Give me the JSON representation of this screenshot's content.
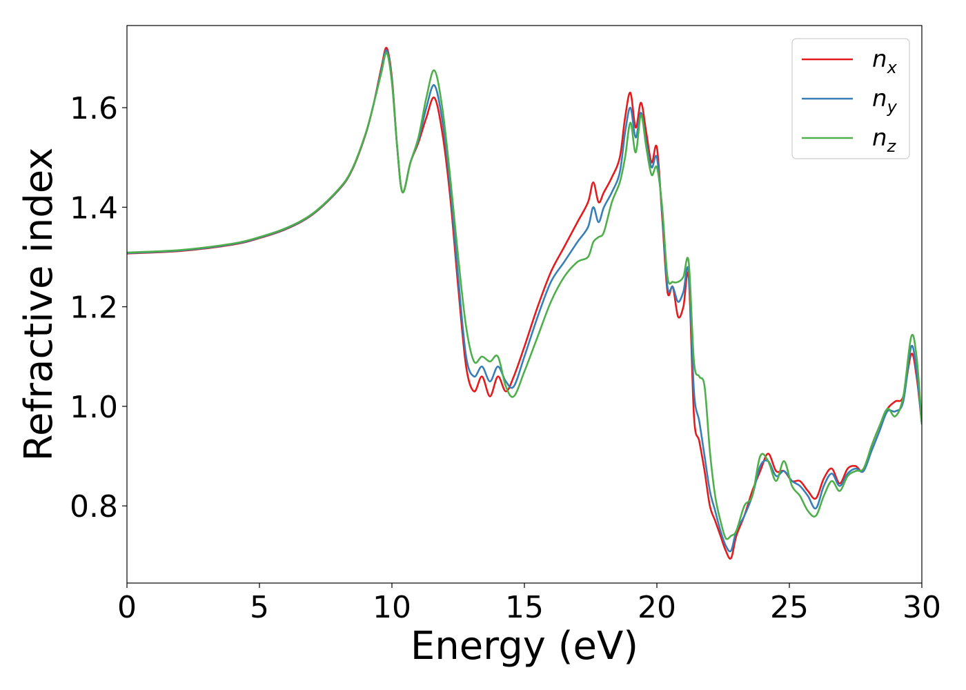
{
  "chart_data": {
    "type": "line",
    "title": "",
    "xlabel": "Energy (eV)",
    "ylabel": "Refractive index",
    "xlim": [
      0,
      30
    ],
    "ylim": [
      0.645,
      1.765
    ],
    "xticks": [
      0,
      5,
      10,
      15,
      20,
      25,
      30
    ],
    "xtick_labels": [
      "0",
      "5",
      "10",
      "15",
      "20",
      "25",
      "30"
    ],
    "yticks": [
      0.8,
      1.0,
      1.2,
      1.4,
      1.6
    ],
    "ytick_labels": [
      "0.8",
      "1.0",
      "1.2",
      "1.4",
      "1.6"
    ],
    "grid": false,
    "legend_position": "top-right",
    "series": [
      {
        "name": "n_x",
        "label_main": "n",
        "label_sub": "x",
        "color": "#e41a1c",
        "x": [
          0,
          2,
          4,
          5,
          6,
          7,
          8,
          8.5,
          9,
          9.3,
          9.6,
          9.8,
          10.0,
          10.2,
          10.4,
          10.7,
          11.0,
          11.3,
          11.6,
          11.9,
          12.2,
          12.5,
          12.8,
          13.1,
          13.4,
          13.7,
          14.0,
          14.3,
          14.6,
          15.0,
          15.5,
          16.0,
          16.5,
          17.0,
          17.4,
          17.6,
          17.8,
          18.0,
          18.3,
          18.6,
          18.8,
          19.0,
          19.2,
          19.4,
          19.6,
          19.8,
          20.0,
          20.2,
          20.4,
          20.6,
          20.8,
          21.0,
          21.2,
          21.4,
          21.6,
          21.8,
          22.0,
          22.2,
          22.4,
          22.6,
          22.8,
          23.0,
          23.3,
          23.6,
          23.9,
          24.2,
          24.5,
          24.8,
          25.1,
          25.4,
          25.7,
          26.0,
          26.3,
          26.6,
          26.9,
          27.2,
          27.5,
          27.8,
          28.1,
          28.4,
          28.7,
          29.0,
          29.3,
          29.6,
          29.8,
          30.0
        ],
        "y": [
          1.307,
          1.312,
          1.325,
          1.338,
          1.356,
          1.385,
          1.435,
          1.475,
          1.545,
          1.605,
          1.68,
          1.72,
          1.66,
          1.52,
          1.43,
          1.49,
          1.53,
          1.58,
          1.62,
          1.55,
          1.42,
          1.24,
          1.08,
          1.03,
          1.06,
          1.02,
          1.06,
          1.03,
          1.06,
          1.12,
          1.2,
          1.27,
          1.32,
          1.37,
          1.41,
          1.45,
          1.41,
          1.43,
          1.46,
          1.5,
          1.58,
          1.63,
          1.56,
          1.61,
          1.55,
          1.49,
          1.52,
          1.38,
          1.23,
          1.24,
          1.18,
          1.2,
          1.26,
          0.98,
          0.93,
          0.87,
          0.8,
          0.77,
          0.74,
          0.71,
          0.695,
          0.74,
          0.78,
          0.83,
          0.87,
          0.905,
          0.87,
          0.87,
          0.85,
          0.85,
          0.83,
          0.815,
          0.855,
          0.875,
          0.845,
          0.875,
          0.88,
          0.87,
          0.92,
          0.96,
          0.995,
          1.01,
          1.02,
          1.105,
          1.06,
          0.965
        ]
      },
      {
        "name": "n_y",
        "label_main": "n",
        "label_sub": "y",
        "color": "#377eb8",
        "x": [
          0,
          2,
          4,
          5,
          6,
          7,
          8,
          8.5,
          9,
          9.3,
          9.6,
          9.8,
          10.0,
          10.2,
          10.4,
          10.7,
          11.0,
          11.3,
          11.6,
          11.9,
          12.2,
          12.5,
          12.8,
          13.1,
          13.4,
          13.7,
          14.0,
          14.3,
          14.6,
          15.0,
          15.5,
          16.0,
          16.5,
          17.0,
          17.4,
          17.6,
          17.8,
          18.0,
          18.3,
          18.6,
          18.8,
          19.0,
          19.2,
          19.4,
          19.6,
          19.8,
          20.0,
          20.2,
          20.4,
          20.6,
          20.8,
          21.0,
          21.2,
          21.4,
          21.6,
          21.8,
          22.0,
          22.2,
          22.4,
          22.6,
          22.8,
          23.0,
          23.3,
          23.6,
          23.9,
          24.2,
          24.5,
          24.8,
          25.1,
          25.4,
          25.7,
          26.0,
          26.3,
          26.6,
          26.9,
          27.2,
          27.5,
          27.8,
          28.1,
          28.4,
          28.7,
          29.0,
          29.3,
          29.6,
          29.8,
          30.0
        ],
        "y": [
          1.308,
          1.313,
          1.326,
          1.339,
          1.357,
          1.386,
          1.436,
          1.476,
          1.546,
          1.605,
          1.675,
          1.715,
          1.655,
          1.52,
          1.43,
          1.49,
          1.535,
          1.6,
          1.645,
          1.575,
          1.44,
          1.26,
          1.1,
          1.06,
          1.08,
          1.05,
          1.08,
          1.05,
          1.04,
          1.1,
          1.18,
          1.25,
          1.29,
          1.33,
          1.36,
          1.4,
          1.37,
          1.4,
          1.43,
          1.47,
          1.55,
          1.6,
          1.54,
          1.59,
          1.53,
          1.48,
          1.5,
          1.39,
          1.24,
          1.24,
          1.21,
          1.23,
          1.27,
          1.03,
          0.97,
          0.9,
          0.83,
          0.79,
          0.75,
          0.72,
          0.71,
          0.75,
          0.78,
          0.82,
          0.88,
          0.89,
          0.86,
          0.87,
          0.85,
          0.84,
          0.82,
          0.795,
          0.84,
          0.865,
          0.84,
          0.865,
          0.875,
          0.87,
          0.91,
          0.95,
          0.99,
          0.99,
          1.01,
          1.12,
          1.07,
          0.965
        ]
      },
      {
        "name": "n_z",
        "label_main": "n",
        "label_sub": "z",
        "color": "#4daf4a",
        "x": [
          0,
          2,
          4,
          5,
          6,
          7,
          8,
          8.5,
          9,
          9.3,
          9.6,
          9.8,
          10.0,
          10.2,
          10.4,
          10.7,
          11.0,
          11.3,
          11.6,
          11.9,
          12.2,
          12.5,
          12.8,
          13.1,
          13.4,
          13.7,
          14.0,
          14.3,
          14.6,
          15.0,
          15.5,
          16.0,
          16.5,
          17.0,
          17.4,
          17.6,
          17.8,
          18.0,
          18.3,
          18.6,
          18.8,
          19.0,
          19.2,
          19.4,
          19.6,
          19.8,
          20.0,
          20.2,
          20.4,
          20.6,
          20.8,
          21.0,
          21.2,
          21.4,
          21.6,
          21.8,
          22.0,
          22.2,
          22.4,
          22.6,
          22.8,
          23.0,
          23.3,
          23.6,
          23.9,
          24.2,
          24.5,
          24.8,
          25.1,
          25.4,
          25.7,
          26.0,
          26.3,
          26.6,
          26.9,
          27.2,
          27.5,
          27.8,
          28.1,
          28.4,
          28.7,
          29.0,
          29.3,
          29.6,
          29.8,
          30.0
        ],
        "y": [
          1.309,
          1.314,
          1.327,
          1.34,
          1.358,
          1.387,
          1.437,
          1.477,
          1.547,
          1.605,
          1.67,
          1.71,
          1.65,
          1.52,
          1.43,
          1.49,
          1.54,
          1.62,
          1.675,
          1.6,
          1.46,
          1.3,
          1.16,
          1.09,
          1.1,
          1.09,
          1.1,
          1.04,
          1.02,
          1.07,
          1.14,
          1.21,
          1.26,
          1.29,
          1.3,
          1.33,
          1.34,
          1.35,
          1.41,
          1.45,
          1.5,
          1.57,
          1.51,
          1.585,
          1.52,
          1.465,
          1.48,
          1.4,
          1.26,
          1.25,
          1.25,
          1.26,
          1.29,
          1.09,
          1.06,
          1.04,
          0.91,
          0.82,
          0.77,
          0.735,
          0.74,
          0.75,
          0.8,
          0.82,
          0.9,
          0.89,
          0.85,
          0.89,
          0.84,
          0.82,
          0.79,
          0.78,
          0.82,
          0.85,
          0.83,
          0.86,
          0.87,
          0.875,
          0.92,
          0.96,
          0.995,
          0.98,
          1.02,
          1.14,
          1.1,
          0.965
        ]
      }
    ]
  }
}
